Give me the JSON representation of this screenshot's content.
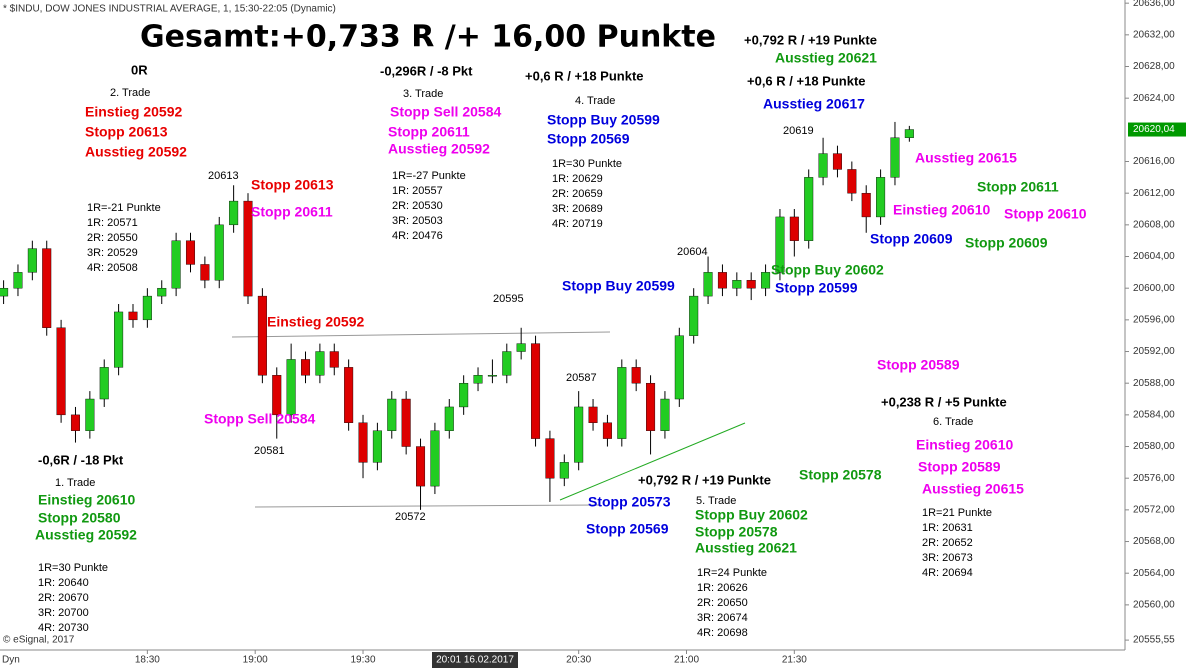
{
  "chart_data": {
    "type": "candlestick",
    "header": "* $INDU, DOW JONES INDUSTRIAL AVERAGE, 1, 15:30-22:05 (Dynamic)",
    "title": "Gesamt:+0,733 R /+ 16,00 Punkte",
    "copyright": "© eSignal, 2017",
    "dyn_label": "Dyn",
    "cursor_label": "20:01 16.02.2017",
    "up_color": "#22cc22",
    "down_color": "#dd0000",
    "x": [
      "17:50",
      "17:54",
      "17:58",
      "18:02",
      "18:06",
      "18:10",
      "18:14",
      "18:18",
      "18:22",
      "18:26",
      "18:30",
      "18:34",
      "18:38",
      "18:42",
      "18:46",
      "18:50",
      "18:54",
      "18:58",
      "19:02",
      "19:06",
      "19:10",
      "19:14",
      "19:18",
      "19:22",
      "19:26",
      "19:30",
      "19:34",
      "19:38",
      "19:42",
      "19:46",
      "19:50",
      "19:54",
      "19:58",
      "20:02",
      "20:06",
      "20:10",
      "20:14",
      "20:18",
      "20:22",
      "20:26",
      "20:30",
      "20:34",
      "20:38",
      "20:42",
      "20:46",
      "20:50",
      "20:54",
      "20:58",
      "21:02",
      "21:06",
      "21:10",
      "21:14",
      "21:18",
      "21:22",
      "21:26",
      "21:30",
      "21:34",
      "21:38",
      "21:42",
      "21:46",
      "21:50",
      "21:54",
      "21:58",
      "22:02"
    ],
    "open": [
      20599,
      20600,
      20602,
      20605,
      20595,
      20584,
      20582,
      20586,
      20590,
      20597,
      20596,
      20599,
      20600,
      20606,
      20603,
      20601,
      20608,
      20611,
      20599,
      20589,
      20584,
      20591,
      20589,
      20592,
      20590,
      20583,
      20578,
      20582,
      20586,
      20580,
      20575,
      20582,
      20585,
      20588,
      20589,
      20589,
      20592,
      20593,
      20581,
      20576,
      20578,
      20585,
      20583,
      20581,
      20590,
      20588,
      20582,
      20586,
      20594,
      20599,
      20602,
      20600,
      20601,
      20600,
      20602,
      20609,
      20606,
      20614,
      20617,
      20615,
      20612,
      20609,
      20614,
      20619
    ],
    "high": [
      20601,
      20603,
      20606,
      20606,
      20596,
      20585,
      20587,
      20591,
      20598,
      20598,
      20600,
      20601,
      20607,
      20607,
      20604,
      20609,
      20613,
      20612,
      20600,
      20590,
      20593,
      20592,
      20593,
      20593,
      20591,
      20584,
      20583,
      20587,
      20587,
      20581,
      20583,
      20586,
      20589,
      20590,
      20591,
      20593,
      20595,
      20594,
      20582,
      20579,
      20587,
      20586,
      20584,
      20591,
      20591,
      20589,
      20587,
      20595,
      20600,
      20604,
      20603,
      20602,
      20602,
      20603,
      20610,
      20610,
      20615,
      20619,
      20618,
      20616,
      20613,
      20615,
      20621,
      20620.5
    ],
    "low": [
      20598,
      20599,
      20601,
      20594,
      20583,
      20580.5,
      20581,
      20585,
      20589,
      20595,
      20595,
      20598,
      20599,
      20602,
      20600,
      20600,
      20607,
      20598,
      20588,
      20581,
      20583,
      20588,
      20588,
      20589,
      20582,
      20576,
      20577,
      20581,
      20579,
      20572,
      20574,
      20581,
      20584,
      20587,
      20588,
      20588,
      20591,
      20580,
      20573,
      20575,
      20577,
      20582,
      20580,
      20580,
      20587,
      20579,
      20581,
      20585,
      20593,
      20598,
      20599,
      20599,
      20598.5,
      20599,
      20601,
      20604,
      20605,
      20613,
      20614,
      20611,
      20607,
      20608,
      20613,
      20618.5
    ],
    "close": [
      20600,
      20602,
      20605,
      20595,
      20584,
      20582,
      20586,
      20590,
      20597,
      20596,
      20599,
      20600,
      20606,
      20603,
      20601,
      20608,
      20611,
      20599,
      20589,
      20584,
      20591,
      20589,
      20592,
      20590,
      20583,
      20578,
      20582,
      20586,
      20580,
      20575,
      20582,
      20585,
      20588,
      20589,
      20589,
      20592,
      20593,
      20581,
      20576,
      20578,
      20585,
      20583,
      20581,
      20590,
      20588,
      20582,
      20586,
      20594,
      20599,
      20602,
      20600,
      20601,
      20600,
      20602,
      20609,
      20606,
      20614,
      20617,
      20615,
      20612,
      20609,
      20614,
      20619,
      20620.04
    ],
    "xlim": [
      "17:49",
      "23:02"
    ],
    "xticks": [
      "18:30",
      "19:00",
      "19:30",
      "20:30",
      "21:00",
      "21:30"
    ],
    "ylim": [
      20554.3,
      20636.4
    ],
    "yticks": [
      {
        "value": 20555.55,
        "label": "20555,55"
      },
      {
        "value": 20560,
        "label": "20560,00"
      },
      {
        "value": 20564,
        "label": "20564,00"
      },
      {
        "value": 20568,
        "label": "20568,00"
      },
      {
        "value": 20572,
        "label": "20572,00"
      },
      {
        "value": 20576,
        "label": "20576,00"
      },
      {
        "value": 20580,
        "label": "20580,00"
      },
      {
        "value": 20584,
        "label": "20584,00"
      },
      {
        "value": 20588,
        "label": "20588,00"
      },
      {
        "value": 20592,
        "label": "20592,00"
      },
      {
        "value": 20596,
        "label": "20596,00"
      },
      {
        "value": 20600,
        "label": "20600,00"
      },
      {
        "value": 20604,
        "label": "20604,00"
      },
      {
        "value": 20608,
        "label": "20608,00"
      },
      {
        "value": 20612,
        "label": "20612,00"
      },
      {
        "value": 20616,
        "label": "20616,00"
      },
      {
        "value": 20624,
        "label": "20624,00"
      },
      {
        "value": 20628,
        "label": "20628,00"
      },
      {
        "value": 20632,
        "label": "20632,00"
      },
      {
        "value": 20636,
        "label": "20636,00"
      }
    ],
    "last_price": {
      "value": 20620.04,
      "label": "20620,04"
    },
    "annotations": [
      "0R",
      "2. Trade",
      "Einstieg 20592",
      "Stopp 20613",
      "Ausstieg 20592",
      "20613",
      "Stopp 20613",
      "Stopp 20611",
      "1R=-21 Punkte",
      "1R: 20571",
      "2R: 20550",
      "3R: 20529",
      "4R: 20508",
      "-0,296R / -8 Pkt",
      "3. Trade",
      "Stopp Sell 20584",
      "Stopp 20611",
      "Ausstieg 20592",
      "1R=-27 Punkte",
      "1R: 20557",
      "2R: 20530",
      "3R: 20503",
      "4R: 20476",
      "+0,6 R / +18 Punkte",
      "4. Trade",
      "Stopp  Buy 20599",
      "Stopp 20569",
      "1R=30 Punkte",
      "1R: 20629",
      "2R: 20659",
      "3R: 20689",
      "4R: 20719",
      "+0,792 R / +19 Punkte",
      "Ausstieg 20621",
      "+0,6 R / +18 Punkte",
      "Ausstieg 20617",
      "20619",
      "Ausstieg 20615",
      "Stopp 20611",
      "Einstieg 20610",
      "Stopp 20610",
      "Stopp 20609",
      "Stopp 20609",
      "20604",
      "Stopp Buy 20602",
      "Stopp 20599",
      "Stopp  Buy 20599",
      "20595",
      "Einstieg 20592",
      "Stopp 20589",
      "20587",
      "+0,238 R / +5 Punkte",
      "6. Trade",
      "Einstieg 20610",
      "Stopp 20589",
      "Ausstieg 20615",
      "1R=21 Punkte",
      "1R: 20631",
      "2R: 20652",
      "3R: 20673",
      "4R: 20694",
      "Stopp Sell 20584",
      "20581",
      "-0,6R / -18 Pkt",
      "1. Trade",
      "Einstieg 20610",
      "Stopp 20580",
      "Ausstieg 20592",
      "1R=30 Punkte",
      "1R: 20640",
      "2R: 20670",
      "3R: 20700",
      "4R: 20730",
      "+0,792 R / +19 Punkte",
      "Stopp 20578",
      "5. Trade",
      "Stopp 20573",
      "Stopp Buy 20602",
      "Stopp 20578",
      "Ausstieg 20621",
      "Stopp 20569",
      "20572",
      "1R=24 Punkte",
      "1R: 20626",
      "2R: 20650",
      "3R: 20674",
      "4R: 20698"
    ]
  }
}
